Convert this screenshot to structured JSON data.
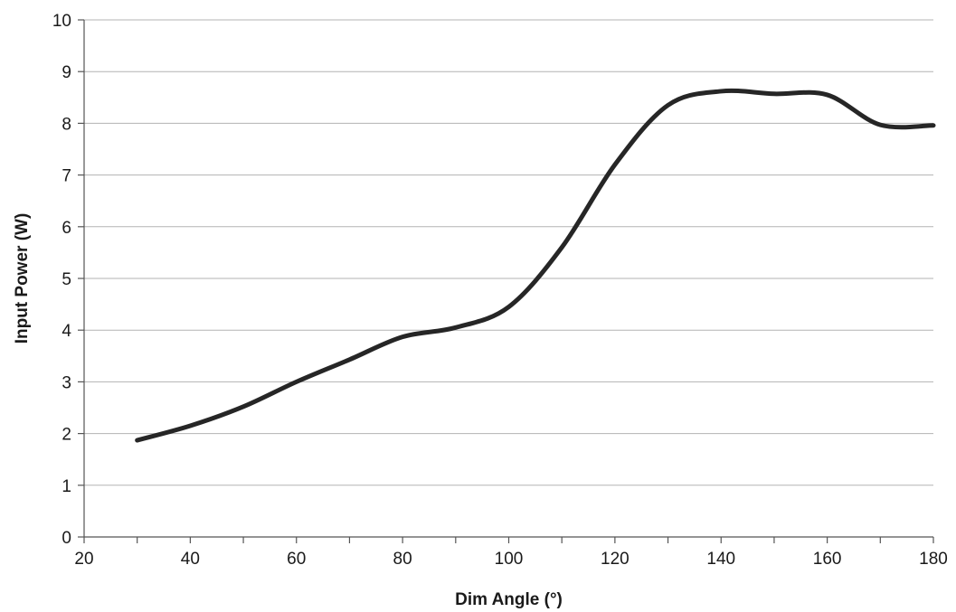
{
  "chart_data": {
    "type": "line",
    "title": "",
    "xlabel": "Dim Angle (°)",
    "ylabel": "Input Power (W)",
    "xlim": [
      20,
      180
    ],
    "ylim": [
      0,
      10
    ],
    "x_ticks": [
      20,
      40,
      60,
      80,
      100,
      120,
      140,
      160,
      180
    ],
    "y_ticks": [
      0,
      1,
      2,
      3,
      4,
      5,
      6,
      7,
      8,
      9,
      10
    ],
    "x_minor_tick_step": 10,
    "grid": "horizontal",
    "legend": "none",
    "series": [
      {
        "color": "#262626",
        "x": [
          30,
          40,
          50,
          60,
          70,
          80,
          90,
          100,
          110,
          120,
          130,
          140,
          150,
          160,
          170,
          180
        ],
        "y": [
          1.87,
          2.15,
          2.52,
          3.0,
          3.43,
          3.87,
          4.05,
          4.45,
          5.6,
          7.2,
          8.35,
          8.62,
          8.57,
          8.55,
          7.97,
          7.96
        ]
      }
    ]
  }
}
